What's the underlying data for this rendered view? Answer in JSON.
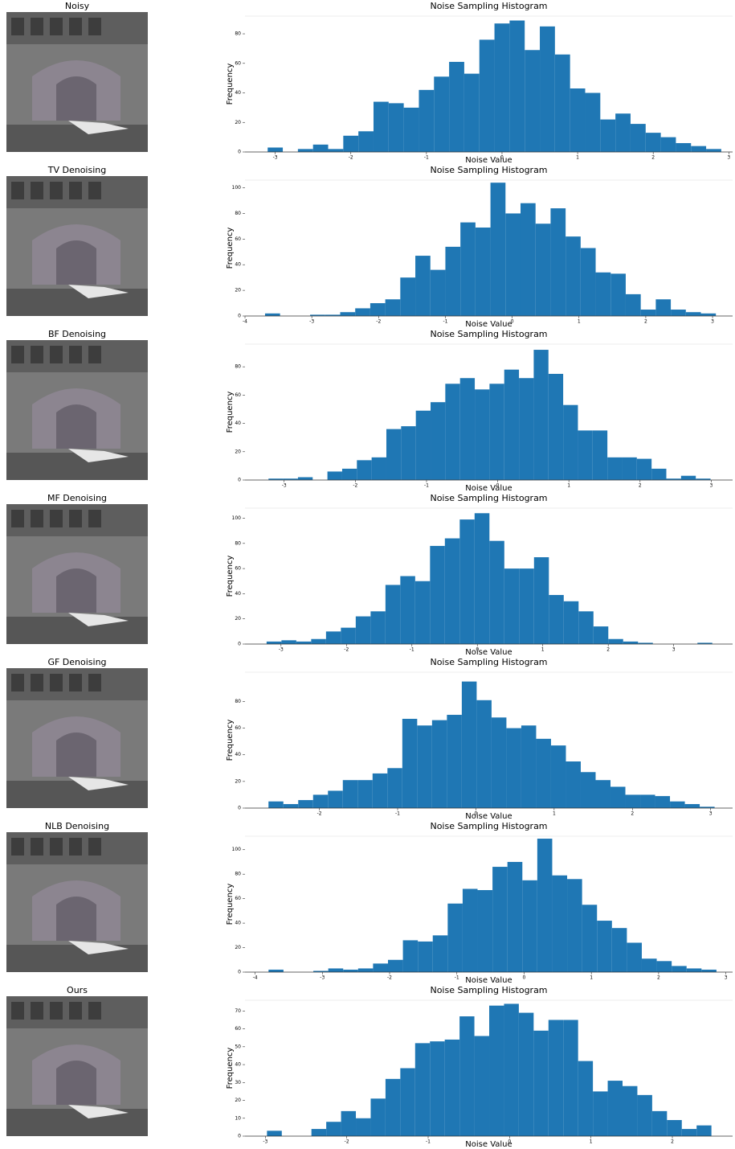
{
  "image_titles": [
    "Noisy",
    "TV Denoising",
    "BF Denoising",
    "MF Denoising",
    "GF Denoising",
    "NLB Denoising",
    "Ours"
  ],
  "chart_data": [
    {
      "type": "histogram",
      "title": "Noise Sampling Histogram",
      "xlabel": "Noise Value",
      "ylabel": "Frequency",
      "color": "#1f77b4",
      "bins": [
        -3.1,
        -2.9,
        -2.7,
        -2.5,
        -2.3,
        -2.1,
        -1.9,
        -1.7,
        -1.5,
        -1.3,
        -1.1,
        -0.9,
        -0.7,
        -0.5,
        -0.3,
        -0.1,
        0.1,
        0.3,
        0.5,
        0.7,
        0.9,
        1.1,
        1.3,
        1.5,
        1.7,
        1.9,
        2.1,
        2.3,
        2.5,
        2.7,
        2.9
      ],
      "values": [
        3,
        0,
        2,
        5,
        2,
        11,
        14,
        34,
        33,
        30,
        42,
        51,
        61,
        53,
        76,
        87,
        89,
        69,
        85,
        66,
        43,
        40,
        22,
        26,
        19,
        13,
        10,
        6,
        4,
        2
      ],
      "xlim": [
        -3.4,
        3.05
      ],
      "ylim": [
        0,
        92
      ],
      "xticks": [
        -3,
        -2,
        -1,
        0,
        1,
        2,
        3
      ],
      "yticks": [
        0,
        20,
        40,
        60,
        80
      ]
    },
    {
      "type": "histogram",
      "title": "Noise Sampling Histogram",
      "xlabel": "Noise Value",
      "ylabel": "Frequency",
      "color": "#1f77b4",
      "bins": [
        -3.7,
        -3.475,
        -3.25,
        -3.025,
        -2.8,
        -2.575,
        -2.35,
        -2.125,
        -1.9,
        -1.675,
        -1.45,
        -1.225,
        -1.0,
        -0.775,
        -0.55,
        -0.325,
        -0.1,
        0.125,
        0.35,
        0.575,
        0.8,
        1.025,
        1.25,
        1.475,
        1.7,
        1.925,
        2.15,
        2.375,
        2.6,
        2.825,
        3.05
      ],
      "values": [
        2,
        0,
        0,
        1,
        1,
        3,
        6,
        10,
        13,
        30,
        47,
        36,
        54,
        73,
        69,
        104,
        80,
        88,
        72,
        84,
        62,
        53,
        34,
        33,
        17,
        5,
        13,
        5,
        3,
        2
      ],
      "xlim": [
        -4,
        3.3
      ],
      "ylim": [
        0,
        106
      ],
      "xticks": [
        -4,
        -3,
        -2,
        -1,
        0,
        1,
        2,
        3
      ],
      "yticks": [
        0,
        20,
        40,
        60,
        80,
        100
      ]
    },
    {
      "type": "histogram",
      "title": "Noise Sampling Histogram",
      "xlabel": "Noise Value",
      "ylabel": "Frequency",
      "color": "#1f77b4",
      "bins": [
        -3.22,
        -3.013,
        -2.806,
        -2.599,
        -2.392,
        -2.185,
        -1.978,
        -1.771,
        -1.564,
        -1.357,
        -1.15,
        -0.943,
        -0.736,
        -0.529,
        -0.322,
        -0.115,
        0.092,
        0.299,
        0.506,
        0.713,
        0.92,
        1.127,
        1.334,
        1.541,
        1.748,
        1.955,
        2.162,
        2.369,
        2.576,
        2.783,
        2.99
      ],
      "values": [
        1,
        1,
        2,
        0,
        6,
        8,
        14,
        16,
        36,
        38,
        49,
        55,
        68,
        72,
        64,
        68,
        78,
        72,
        92,
        75,
        53,
        35,
        35,
        16,
        16,
        15,
        8,
        1,
        3,
        1
      ],
      "xlim": [
        -3.55,
        3.3
      ],
      "ylim": [
        0,
        96
      ],
      "xticks": [
        -3,
        -2,
        -1,
        0,
        1,
        2,
        3
      ],
      "yticks": [
        0,
        20,
        40,
        60,
        80
      ]
    },
    {
      "type": "histogram",
      "title": "Noise Sampling Histogram",
      "xlabel": "Noise Value",
      "ylabel": "Frequency",
      "color": "#1f77b4",
      "bins": [
        -3.22,
        -2.993,
        -2.766,
        -2.539,
        -2.312,
        -2.085,
        -1.858,
        -1.631,
        -1.404,
        -1.177,
        -0.95,
        -0.723,
        -0.496,
        -0.269,
        -0.042,
        0.185,
        0.412,
        0.639,
        0.866,
        1.093,
        1.32,
        1.547,
        1.774,
        2.001,
        2.228,
        2.455,
        2.682,
        2.909,
        3.136,
        3.363,
        3.59
      ],
      "values": [
        2,
        3,
        2,
        4,
        10,
        13,
        22,
        26,
        47,
        54,
        50,
        78,
        84,
        99,
        104,
        82,
        60,
        60,
        69,
        39,
        34,
        26,
        14,
        4,
        2,
        1,
        0,
        0,
        0,
        1
      ],
      "xlim": [
        -3.55,
        3.9
      ],
      "ylim": [
        0,
        108
      ],
      "xticks": [
        -3,
        -2,
        -1,
        0,
        1,
        2,
        3
      ],
      "yticks": [
        0,
        20,
        40,
        60,
        80,
        100
      ]
    },
    {
      "type": "histogram",
      "title": "Noise Sampling Histogram",
      "xlabel": "Noise Value",
      "ylabel": "Frequency",
      "color": "#1f77b4",
      "bins": [
        -2.65,
        -2.46,
        -2.27,
        -2.08,
        -1.89,
        -1.7,
        -1.51,
        -1.32,
        -1.13,
        -0.94,
        -0.75,
        -0.56,
        -0.37,
        -0.18,
        0.01,
        0.2,
        0.39,
        0.58,
        0.77,
        0.96,
        1.15,
        1.34,
        1.53,
        1.72,
        1.91,
        2.1,
        2.29,
        2.48,
        2.67,
        2.86,
        3.05
      ],
      "values": [
        5,
        3,
        6,
        10,
        13,
        21,
        21,
        26,
        30,
        67,
        62,
        66,
        70,
        95,
        81,
        68,
        60,
        62,
        52,
        47,
        35,
        27,
        21,
        16,
        10,
        10,
        9,
        5,
        3,
        1
      ],
      "xlim": [
        -2.95,
        3.28
      ],
      "ylim": [
        0,
        102
      ],
      "xticks": [
        -2,
        -1,
        0,
        1,
        2,
        3
      ],
      "yticks": [
        0,
        20,
        40,
        60,
        80
      ]
    },
    {
      "type": "histogram",
      "title": "Noise Sampling Histogram",
      "xlabel": "Noise Value",
      "ylabel": "Frequency",
      "color": "#1f77b4",
      "bins": [
        -3.8,
        -3.578,
        -3.356,
        -3.134,
        -2.912,
        -2.69,
        -2.468,
        -2.246,
        -2.024,
        -1.802,
        -1.58,
        -1.358,
        -1.136,
        -0.914,
        -0.692,
        -0.47,
        -0.248,
        -0.026,
        0.196,
        0.418,
        0.64,
        0.862,
        1.084,
        1.306,
        1.528,
        1.75,
        1.972,
        2.194,
        2.416,
        2.638,
        2.86
      ],
      "values": [
        2,
        0,
        0,
        1,
        3,
        2,
        3,
        7,
        10,
        26,
        25,
        30,
        56,
        68,
        67,
        86,
        90,
        75,
        109,
        79,
        76,
        55,
        42,
        36,
        24,
        11,
        9,
        5,
        3,
        2
      ],
      "xlim": [
        -4.15,
        3.1
      ],
      "ylim": [
        0,
        111
      ],
      "xticks": [
        -4,
        -3,
        -2,
        -1,
        0,
        1,
        2,
        3
      ],
      "yticks": [
        0,
        20,
        40,
        60,
        80,
        100
      ]
    },
    {
      "type": "histogram",
      "title": "Noise Sampling Histogram",
      "xlabel": "Noise Value",
      "ylabel": "Frequency",
      "color": "#1f77b4",
      "bins": [
        -2.98,
        -2.798,
        -2.616,
        -2.434,
        -2.252,
        -2.07,
        -1.888,
        -1.706,
        -1.524,
        -1.342,
        -1.16,
        -0.978,
        -0.796,
        -0.614,
        -0.432,
        -0.25,
        -0.068,
        0.114,
        0.296,
        0.478,
        0.66,
        0.842,
        1.024,
        1.206,
        1.388,
        1.57,
        1.752,
        1.934,
        2.116,
        2.298,
        2.48
      ],
      "values": [
        3,
        0,
        0,
        4,
        8,
        14,
        10,
        21,
        32,
        38,
        52,
        53,
        54,
        67,
        56,
        73,
        74,
        69,
        59,
        65,
        65,
        42,
        25,
        31,
        28,
        23,
        14,
        9,
        4,
        6
      ],
      "xlim": [
        -3.25,
        2.74
      ],
      "ylim": [
        0,
        76
      ],
      "xticks": [
        -3,
        -2,
        -1,
        0,
        1,
        2
      ],
      "yticks": [
        0,
        10,
        20,
        30,
        40,
        50,
        60,
        70
      ]
    }
  ]
}
